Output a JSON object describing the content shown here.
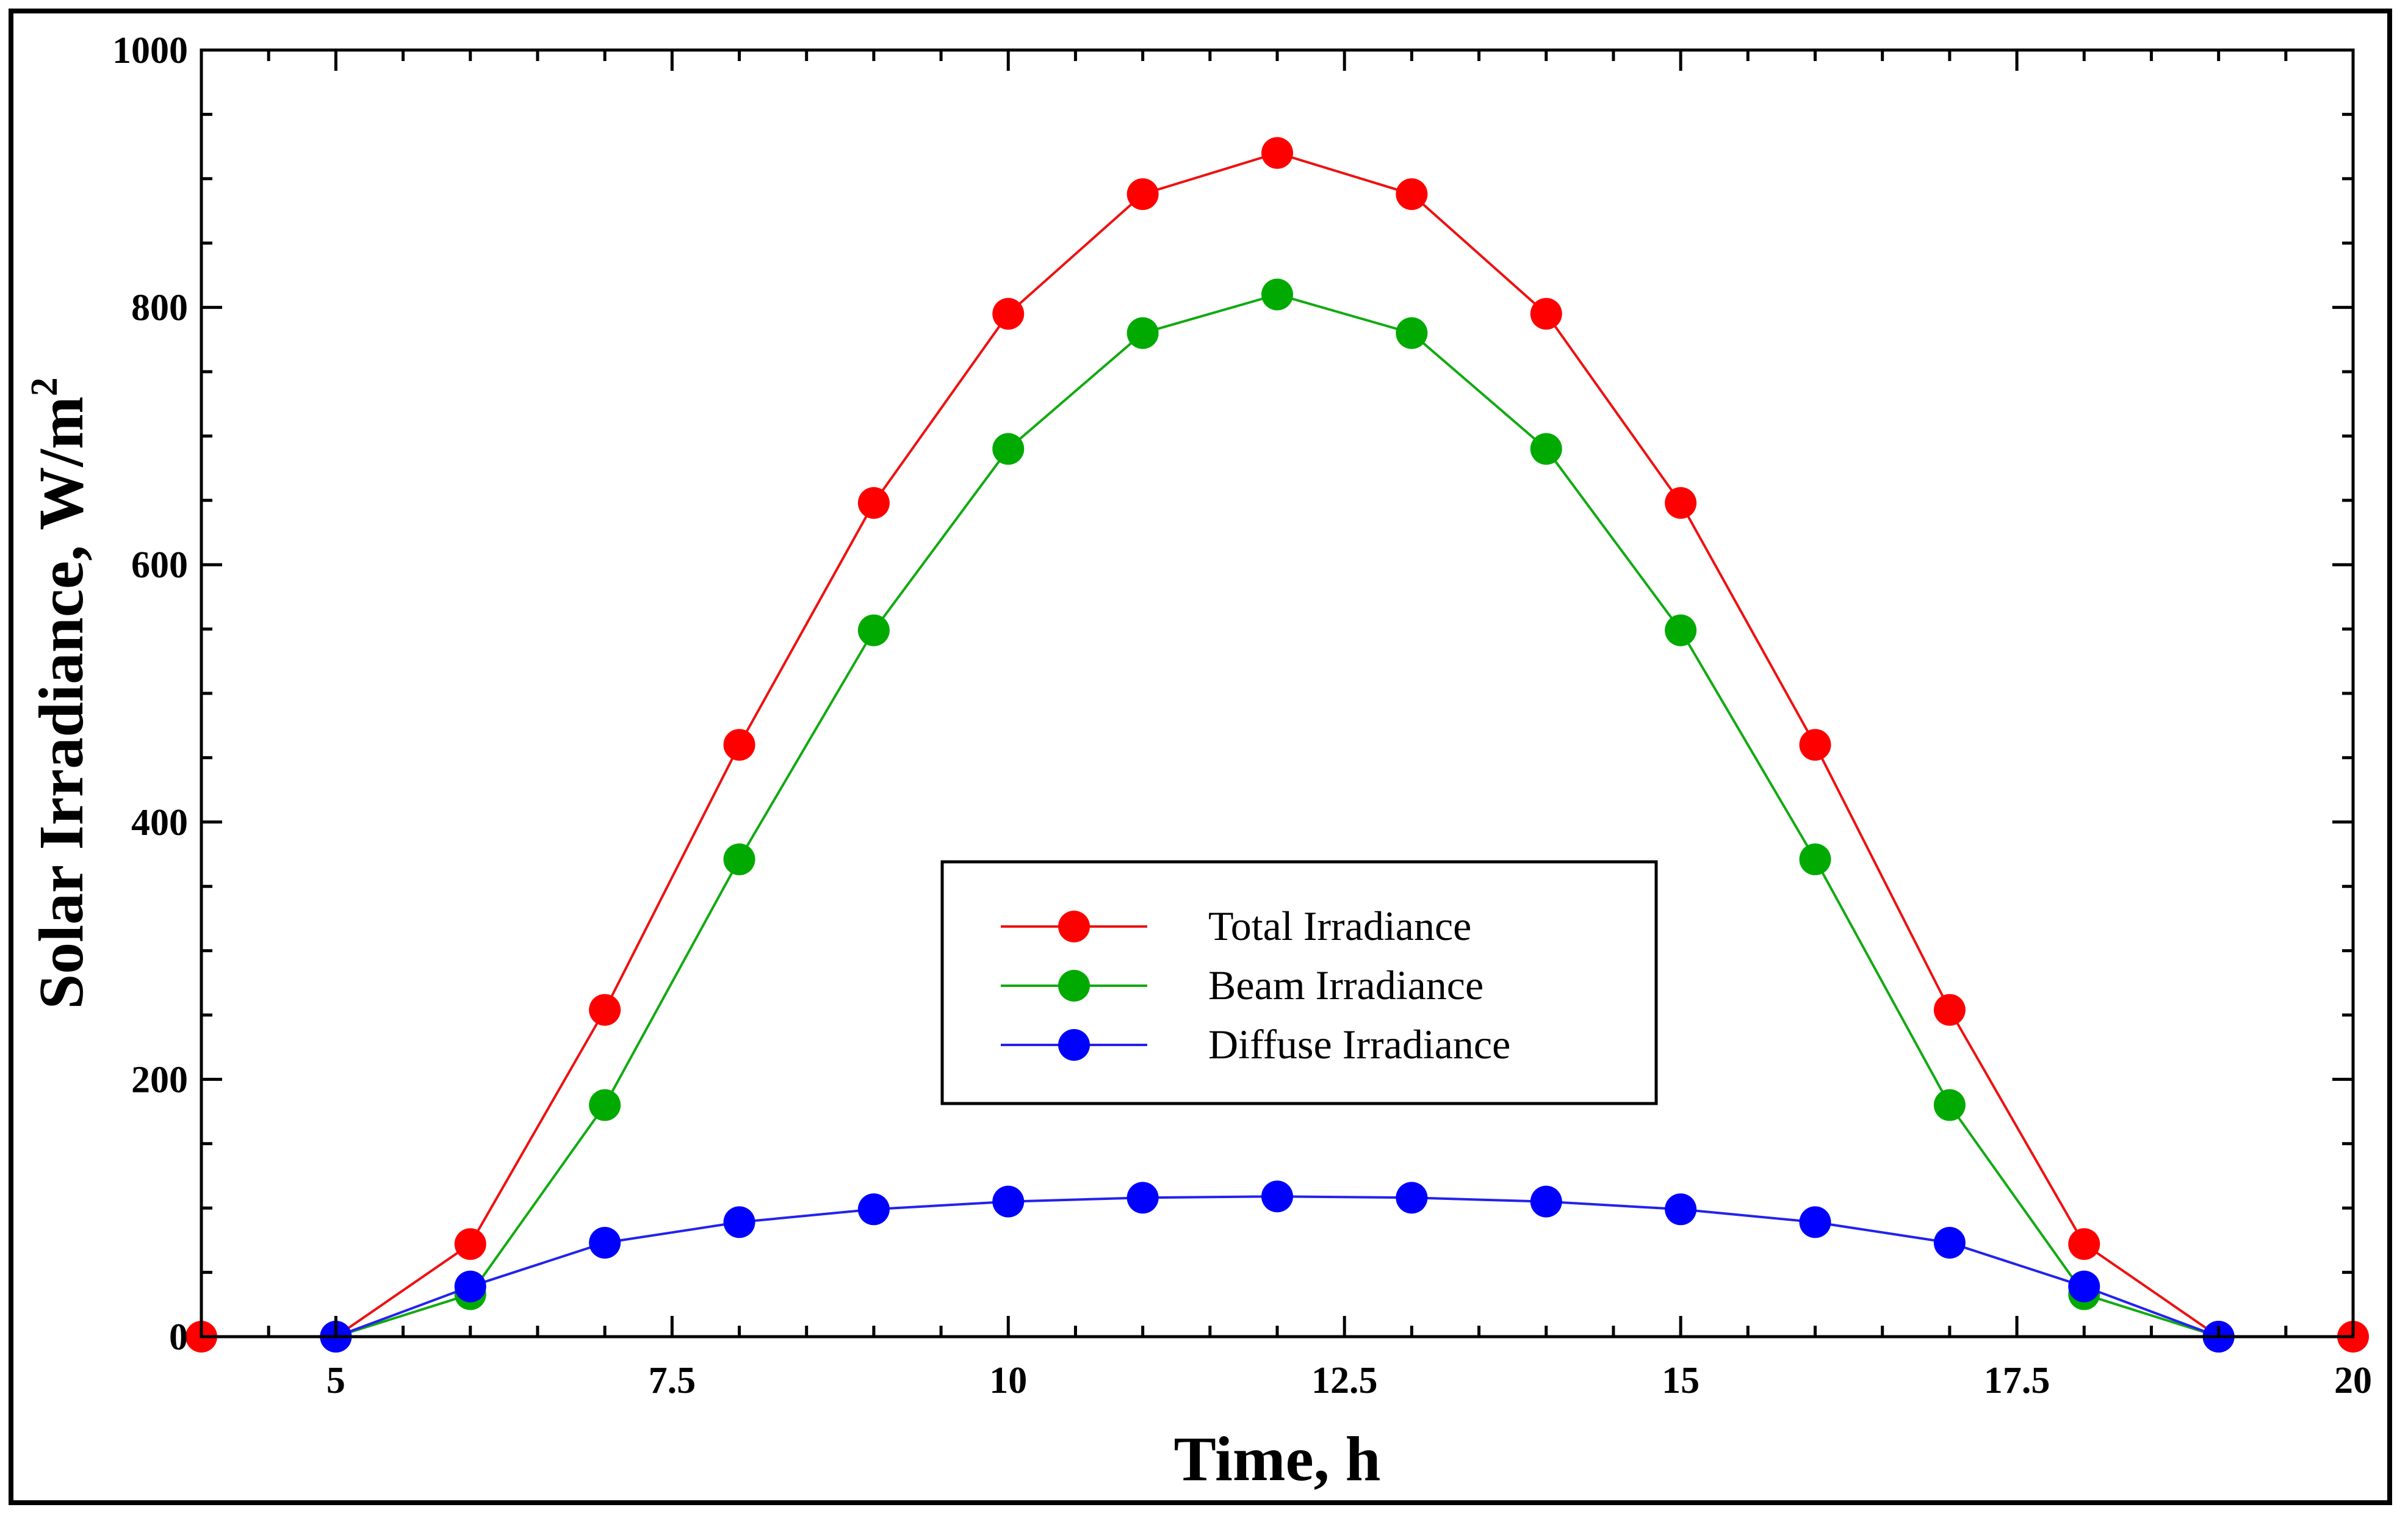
{
  "chart_data": {
    "type": "line",
    "title": "",
    "xlabel": "Time, h",
    "ylabel_main": "Solar Irradiance, W/m",
    "ylabel_sup": "2",
    "xlim": [
      4,
      20
    ],
    "ylim": [
      0,
      1000
    ],
    "xticks": [
      5,
      7.5,
      10,
      12.5,
      15,
      17.5,
      20
    ],
    "xtick_labels": [
      "5",
      "7.5",
      "10",
      "12.5",
      "15",
      "17.5",
      "20"
    ],
    "yticks": [
      0,
      200,
      400,
      600,
      800,
      1000
    ],
    "ytick_labels": [
      "0",
      "200",
      "400",
      "600",
      "800",
      "1000"
    ],
    "x_minor_step": 0.5,
    "y_minor_step": 50,
    "grid": false,
    "legend_position": "center",
    "series": [
      {
        "name": "Total Irradiance",
        "color": "#ee1111",
        "marker_color": "#ff0000",
        "x": [
          4,
          5,
          6,
          7,
          8,
          9,
          10,
          11,
          12,
          13,
          14,
          15,
          16,
          17,
          18,
          19,
          20
        ],
        "values": [
          0,
          0,
          72,
          254,
          460,
          648,
          795,
          888,
          920,
          888,
          795,
          648,
          460,
          254,
          72,
          0,
          0
        ]
      },
      {
        "name": "Beam Irradiance",
        "color": "#11aa11",
        "marker_color": "#00aa00",
        "x": [
          5,
          6,
          7,
          8,
          9,
          10,
          11,
          12,
          13,
          14,
          15,
          16,
          17,
          18,
          19
        ],
        "values": [
          0,
          33,
          180,
          371,
          549,
          690,
          780,
          810,
          780,
          690,
          549,
          371,
          180,
          33,
          0
        ]
      },
      {
        "name": "Diffuse Irradiance",
        "color": "#2222ee",
        "marker_color": "#0000ff",
        "x": [
          5,
          6,
          7,
          8,
          9,
          10,
          11,
          12,
          13,
          14,
          15,
          16,
          17,
          18,
          19
        ],
        "values": [
          0,
          39,
          73,
          89,
          99,
          105,
          108,
          109,
          108,
          105,
          99,
          89,
          73,
          39,
          0
        ]
      }
    ]
  }
}
